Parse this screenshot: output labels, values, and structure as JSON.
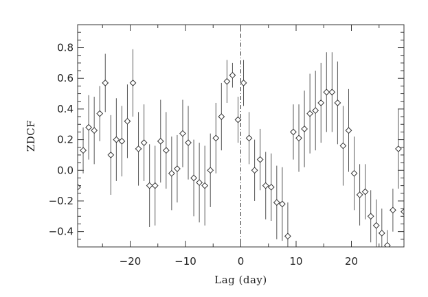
{
  "chart_data": {
    "type": "scatter",
    "title": "",
    "xlabel": "Lag (day)",
    "ylabel": "ZDCF",
    "xlim": [
      -29.5,
      29.5
    ],
    "ylim": [
      -0.5,
      0.95
    ],
    "x_ticks": [
      -20,
      -10,
      0,
      10,
      20
    ],
    "x_tick_labels": [
      "−20",
      "−10",
      "0",
      "10",
      "20"
    ],
    "y_ticks": [
      -0.4,
      -0.2,
      0.0,
      0.2,
      0.4,
      0.6,
      0.8
    ],
    "y_tick_labels": [
      "−0.4",
      "−0.2",
      "0.0",
      "0.2",
      "0.4",
      "0.6",
      "0.8"
    ],
    "reference_line_x": 0,
    "grid": false,
    "marker": "diamond",
    "series": [
      {
        "x": [
          -29.5,
          -28.5,
          -27.5,
          -26.5,
          -25.5,
          -24.5,
          -23.5,
          -22.5,
          -21.5,
          -20.5,
          -19.5,
          -18.5,
          -17.5,
          -16.5,
          -15.5,
          -14.5,
          -13.5,
          -12.5,
          -11.5,
          -10.5,
          -9.5,
          -8.5,
          -7.5,
          -6.5,
          -5.5,
          -4.5,
          -3.5,
          -2.5,
          -1.5,
          -0.5,
          0.5,
          1.5,
          2.5,
          3.5,
          4.5,
          5.5,
          6.5,
          7.5,
          8.5,
          9.5,
          10.5,
          11.5,
          12.5,
          13.5,
          14.5,
          15.5,
          16.5,
          17.5,
          18.5,
          19.5,
          20.5,
          21.5,
          22.5,
          23.5,
          24.5,
          25.5,
          26.5,
          27.5,
          28.5,
          29.5
        ],
        "y": [
          -0.11,
          0.13,
          0.28,
          0.26,
          0.37,
          0.57,
          0.1,
          0.2,
          0.19,
          0.32,
          0.57,
          0.14,
          0.18,
          -0.1,
          -0.1,
          0.19,
          0.13,
          -0.02,
          0.01,
          0.24,
          0.18,
          -0.05,
          -0.08,
          -0.1,
          0.0,
          0.21,
          0.35,
          0.58,
          0.62,
          0.33,
          0.57,
          0.21,
          0.0,
          0.07,
          -0.1,
          -0.11,
          -0.21,
          -0.22,
          -0.43,
          0.25,
          0.21,
          0.27,
          0.37,
          0.39,
          0.44,
          0.51,
          0.51,
          0.44,
          0.16,
          0.26,
          -0.02,
          -0.16,
          -0.14,
          -0.3,
          -0.36,
          -0.41,
          -0.49,
          -0.26,
          0.14,
          -0.27
        ],
        "err": [
          0.15,
          0.15,
          0.21,
          0.22,
          0.18,
          0.19,
          0.26,
          0.27,
          0.23,
          0.24,
          0.22,
          0.24,
          0.25,
          0.27,
          0.26,
          0.27,
          0.25,
          0.24,
          0.22,
          0.22,
          0.24,
          0.25,
          0.26,
          0.26,
          0.24,
          0.23,
          0.22,
          0.14,
          0.08,
          0.15,
          0.15,
          0.17,
          0.2,
          0.2,
          0.22,
          0.22,
          0.24,
          0.24,
          0.22,
          0.18,
          0.22,
          0.25,
          0.26,
          0.26,
          0.26,
          0.26,
          0.26,
          0.27,
          0.26,
          0.27,
          0.24,
          0.2,
          0.18,
          0.17,
          0.17,
          0.16,
          0.1,
          0.14,
          0.26,
          0.15
        ]
      }
    ]
  }
}
